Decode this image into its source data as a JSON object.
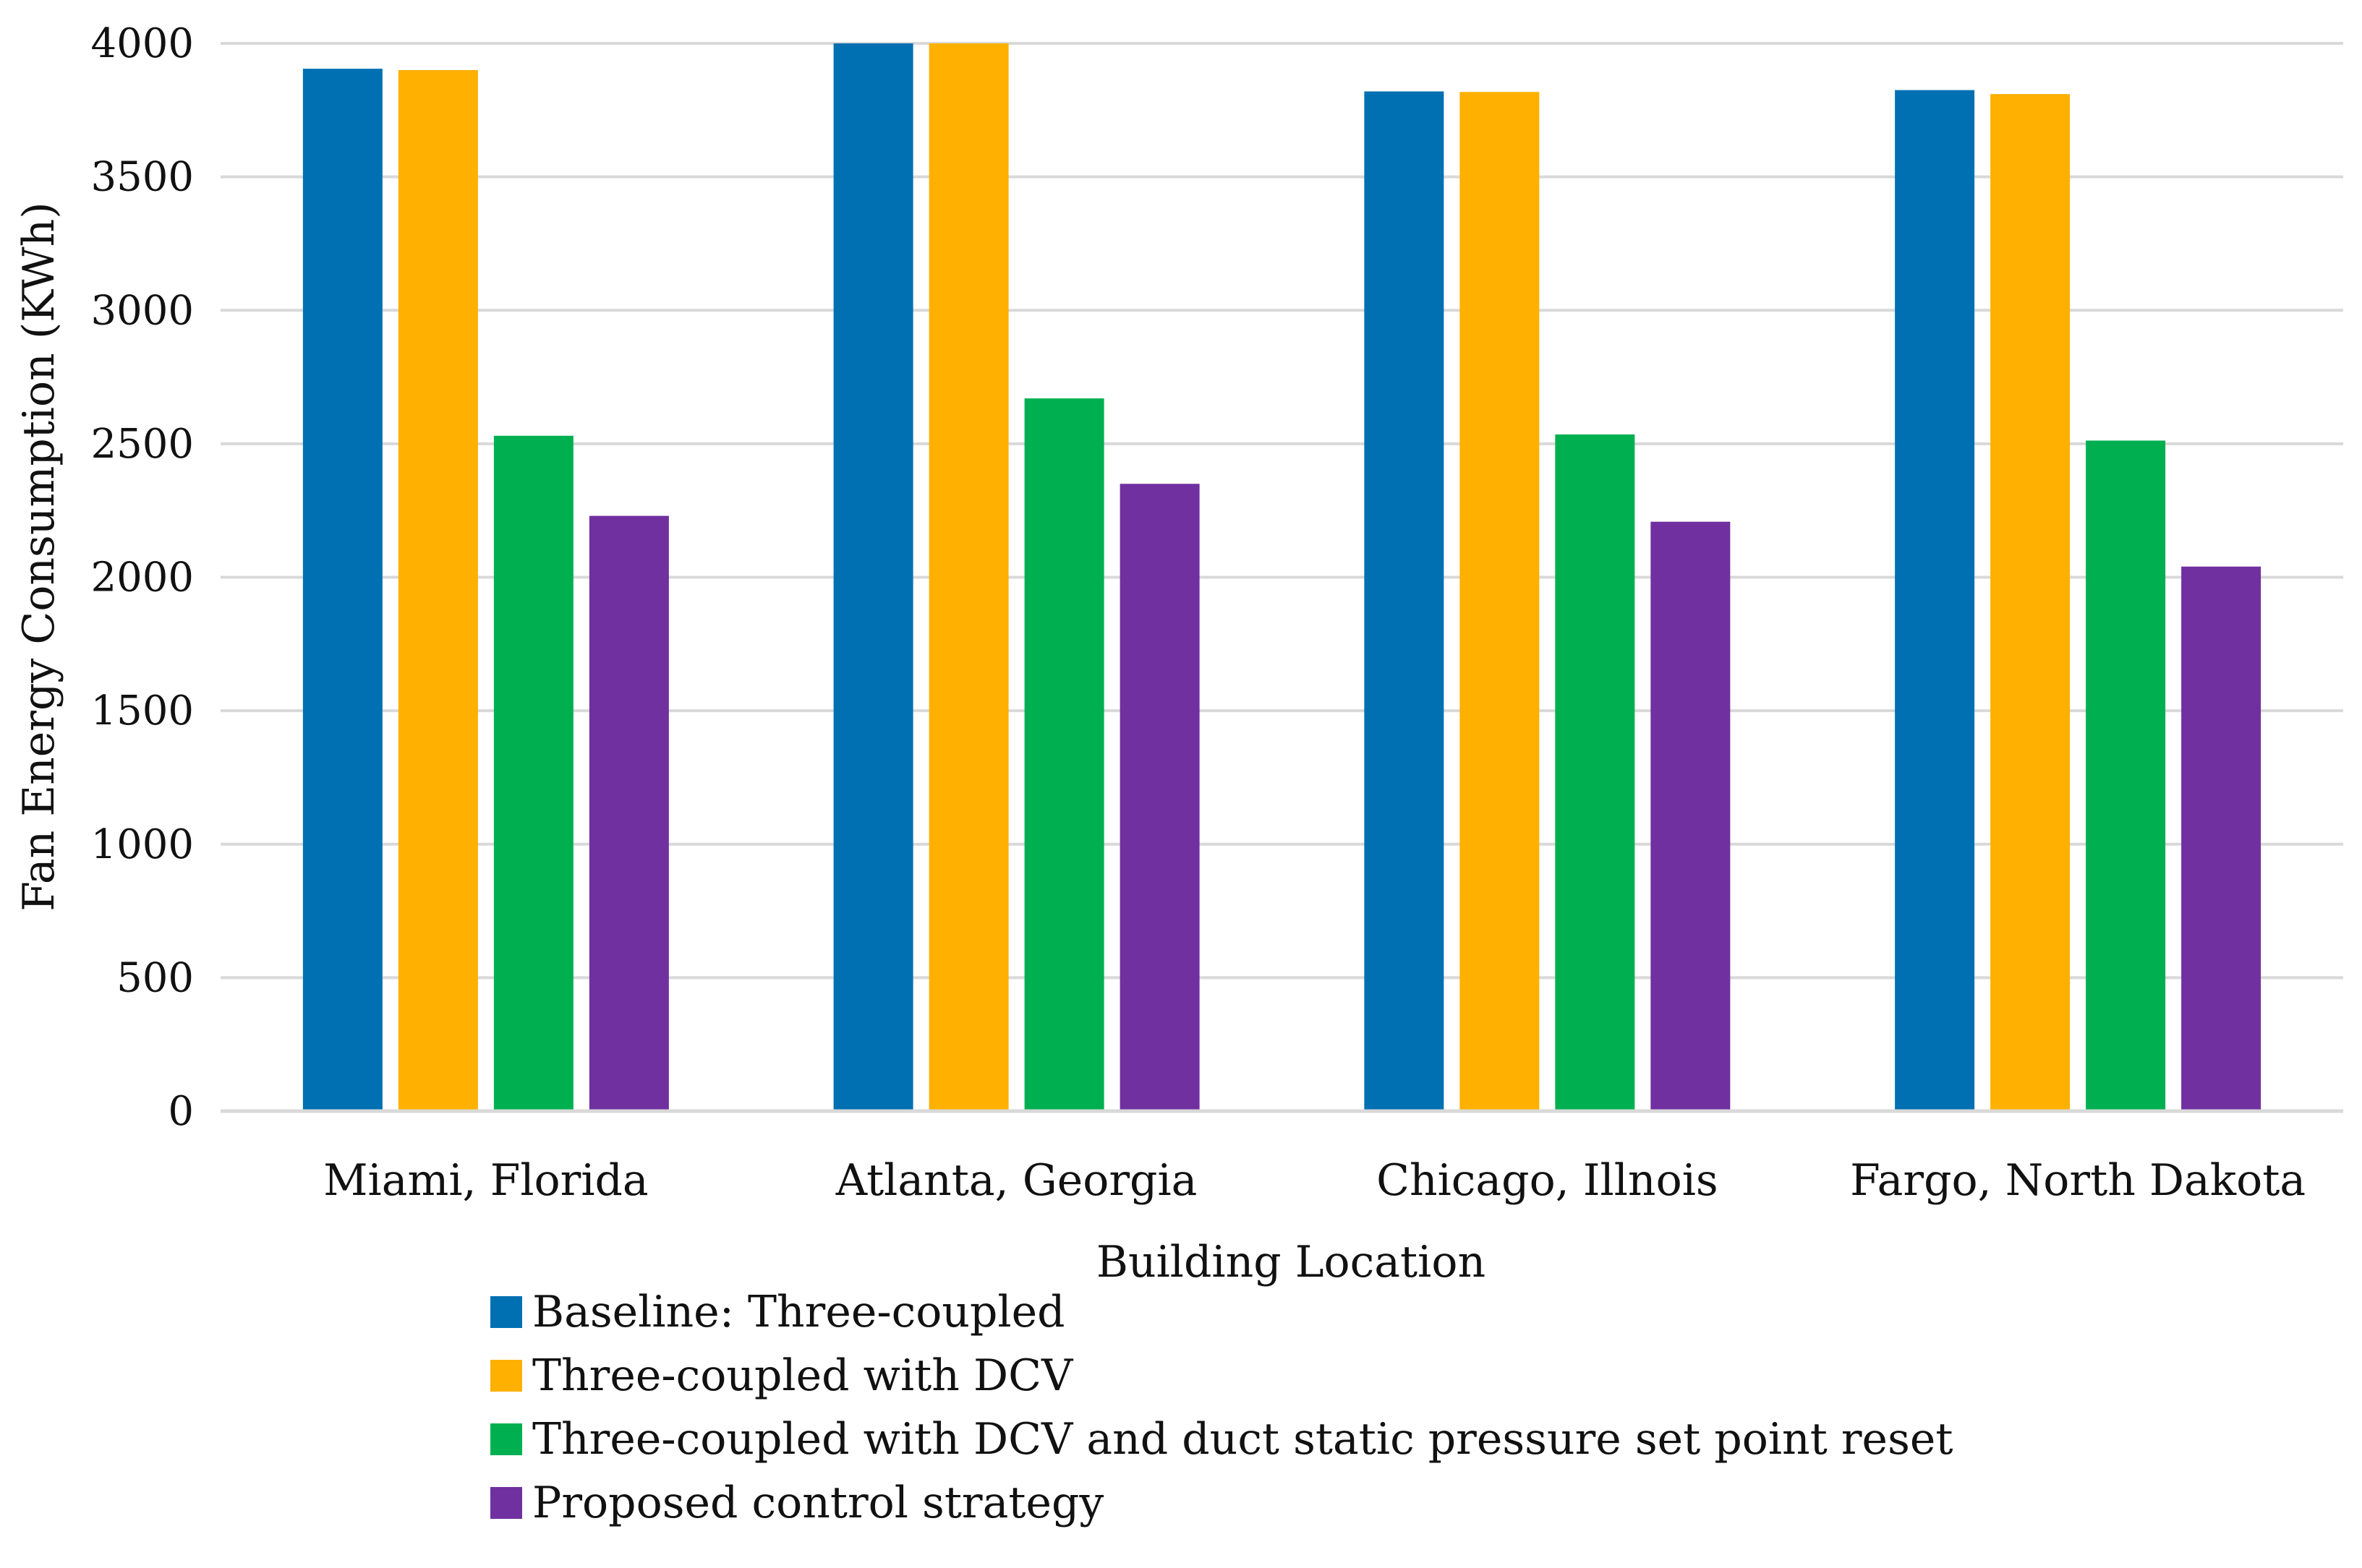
{
  "chart_data": {
    "type": "bar",
    "title": "",
    "xlabel": "Building Location",
    "ylabel": "Fan Energy Consumption (KWh)",
    "ylim": [
      0,
      4000
    ],
    "yticks": [
      0,
      500,
      1000,
      1500,
      2000,
      2500,
      3000,
      3500,
      4000
    ],
    "ytick_labels": [
      "0",
      "500",
      "1000",
      "1500",
      "2000",
      "2500",
      "3000",
      "3500",
      "4000"
    ],
    "grid": true,
    "legend_position": "bottom",
    "categories": [
      "Miami, Florida",
      "Atlanta, Georgia",
      "Chicago, Illnois",
      "Fargo, North Dakota"
    ],
    "series": [
      {
        "name": "Baseline: Three-coupled",
        "color": "#0070b2",
        "values": [
          3905,
          4000,
          3820,
          3825
        ]
      },
      {
        "name": "Three-coupled with DCV",
        "color": "#ffb000",
        "values": [
          3900,
          4000,
          3818,
          3810
        ]
      },
      {
        "name": "Three-coupled with DCV and duct static pressure set point reset",
        "color": "#00b050",
        "values": [
          2530,
          2670,
          2535,
          2512
        ]
      },
      {
        "name": "Proposed control strategy",
        "color": "#7030a0",
        "values": [
          2230,
          2350,
          2208,
          2040
        ]
      }
    ]
  }
}
